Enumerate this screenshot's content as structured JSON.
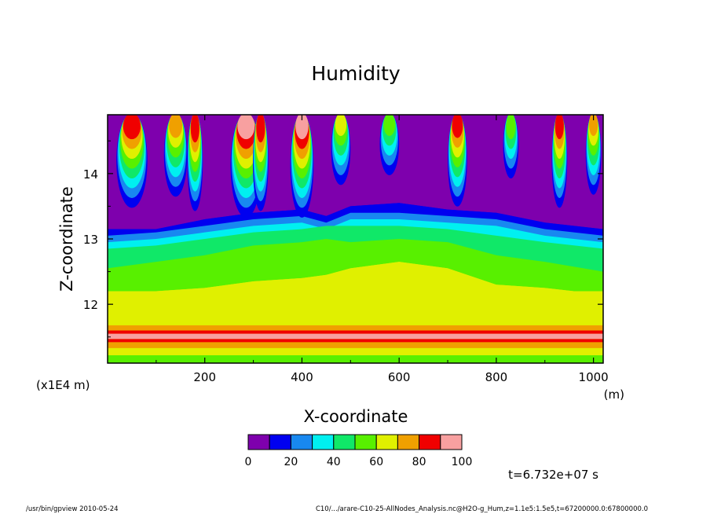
{
  "chart_data": {
    "type": "heatmap",
    "title": "Humidity",
    "xlabel": "X-coordinate",
    "ylabel": "Z-coordinate",
    "x_unit": "(m)",
    "y_unit": "(x1E4 m)",
    "xlim": [
      0,
      1020
    ],
    "ylim": [
      11.1,
      14.9
    ],
    "x_ticks": [
      200,
      400,
      600,
      800,
      1000
    ],
    "y_ticks": [
      12,
      13,
      14
    ],
    "x_tick_labels": [
      "200",
      "400",
      "600",
      "800",
      "1000"
    ],
    "y_tick_labels": [
      "12",
      "13",
      "14"
    ],
    "levels": [
      0,
      10,
      20,
      30,
      40,
      50,
      60,
      70,
      80,
      90,
      100
    ],
    "colorbar_labels": [
      "0",
      "20",
      "40",
      "60",
      "80",
      "100"
    ],
    "colorbar_label_values": [
      0,
      20,
      40,
      60,
      80,
      100
    ],
    "palette": [
      "#7e00ad",
      "#0000f0",
      "#1888f0",
      "#00f0f0",
      "#10e868",
      "#58f000",
      "#e0f000",
      "#f0a000",
      "#f00000",
      "#f8a0a0"
    ],
    "bands": [
      {
        "z0": 11.1,
        "z1": 11.22,
        "value": 55
      },
      {
        "z0": 11.22,
        "z1": 11.33,
        "value": 65
      },
      {
        "z0": 11.33,
        "z1": 11.42,
        "value": 75
      },
      {
        "z0": 11.42,
        "z1": 11.47,
        "value": 85
      },
      {
        "z0": 11.47,
        "z1": 11.55,
        "value": 95
      },
      {
        "z0": 11.55,
        "z1": 11.6,
        "value": 85
      },
      {
        "z0": 11.6,
        "z1": 11.68,
        "value": 75
      },
      {
        "z0": 11.68,
        "z1": 11.75,
        "value": 68
      },
      {
        "z0": 11.75,
        "z1": 12.2,
        "value": 65
      }
    ],
    "profile_x": [
      0,
      100,
      200,
      300,
      400,
      450,
      500,
      600,
      700,
      800,
      900,
      1020
    ],
    "contour_60_z": [
      12.2,
      12.2,
      12.25,
      12.35,
      12.4,
      12.45,
      12.55,
      12.65,
      12.55,
      12.3,
      12.25,
      12.15
    ],
    "contour_50_z": [
      12.55,
      12.65,
      12.75,
      12.9,
      12.95,
      13.0,
      12.95,
      13.0,
      12.95,
      12.75,
      12.65,
      12.5
    ],
    "contour_40_z": [
      12.85,
      12.9,
      13.0,
      13.1,
      13.15,
      13.2,
      13.2,
      13.2,
      13.15,
      13.05,
      12.95,
      12.85
    ],
    "contour_30_z": [
      12.95,
      13.0,
      13.1,
      13.2,
      13.25,
      13.15,
      13.3,
      13.3,
      13.25,
      13.2,
      13.05,
      12.95
    ],
    "contour_20_z": [
      13.05,
      13.1,
      13.2,
      13.3,
      13.35,
      13.25,
      13.4,
      13.4,
      13.35,
      13.3,
      13.15,
      13.05
    ],
    "contour_10_z": [
      13.15,
      13.15,
      13.3,
      13.4,
      13.45,
      13.35,
      13.5,
      13.55,
      13.45,
      13.4,
      13.25,
      13.15
    ],
    "plumes": [
      {
        "x": 50,
        "w": 40,
        "value": 85,
        "z": 14.7
      },
      {
        "x": 140,
        "w": 30,
        "value": 75,
        "z": 14.72
      },
      {
        "x": 180,
        "w": 20,
        "value": 88,
        "z": 14.65
      },
      {
        "x": 285,
        "w": 40,
        "value": 95,
        "z": 14.7
      },
      {
        "x": 315,
        "w": 20,
        "value": 85,
        "z": 14.65
      },
      {
        "x": 400,
        "w": 30,
        "value": 95,
        "z": 14.7
      },
      {
        "x": 480,
        "w": 25,
        "value": 70,
        "z": 14.75
      },
      {
        "x": 580,
        "w": 25,
        "value": 55,
        "z": 14.75
      },
      {
        "x": 720,
        "w": 25,
        "value": 85,
        "z": 14.72
      },
      {
        "x": 830,
        "w": 20,
        "value": 60,
        "z": 14.7
      },
      {
        "x": 930,
        "w": 20,
        "value": 88,
        "z": 14.7
      },
      {
        "x": 1000,
        "w": 20,
        "value": 75,
        "z": 14.75
      }
    ]
  },
  "time_label": "t=6.732e+07 s",
  "footer_left": "/usr/bin/gpview   2010-05-24",
  "footer_right": "C10/.../arare-C10-25-AllNodes_Analysis.nc@H2O-g_Hum,z=1.1e5:1.5e5,t=67200000.0:67800000.0"
}
